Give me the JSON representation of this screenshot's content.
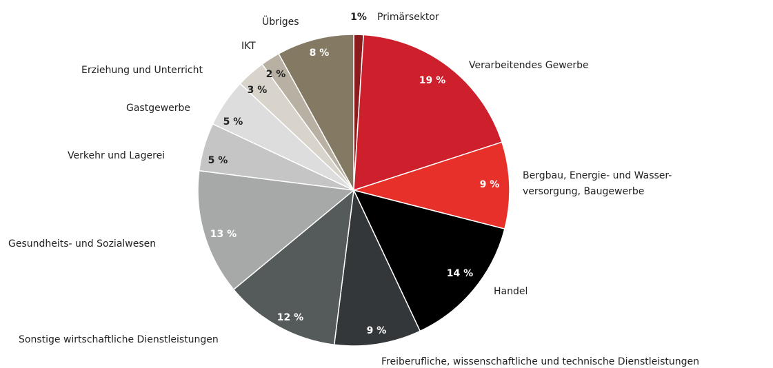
{
  "chart_data": {
    "type": "pie",
    "categories": [
      "Primärsektor",
      "Verarbeitendes Gewerbe",
      "Bergbau, Energie- und Wasser-\nversorgung, Baugewerbe",
      "Handel",
      "Freiberufliche, wissenschaftliche und technische Dienstleistungen",
      "Sonstige wirtschaftliche Dienstleistungen",
      "Gesundheits- und Sozialwesen",
      "Verkehr und Lagerei",
      "Gastgewerbe",
      "Erziehung und Unterricht",
      "IKT",
      "Übriges"
    ],
    "values": [
      1,
      19,
      9,
      14,
      9,
      12,
      13,
      5,
      5,
      3,
      2,
      8
    ],
    "value_labels": [
      "1%",
      "19 %",
      "9 %",
      "14 %",
      "9 %",
      "12 %",
      "13 %",
      "5 %",
      "5 %",
      "3 %",
      "2 %",
      "8 %"
    ],
    "colors": [
      "#8c1b1e",
      "#cd1f2c",
      "#e8302a",
      "#000000",
      "#33373a",
      "#555a5b",
      "#a6a9a8",
      "#c4c5c4",
      "#dcdddc",
      "#d8d4cc",
      "#b8b1a3",
      "#847a64"
    ]
  }
}
